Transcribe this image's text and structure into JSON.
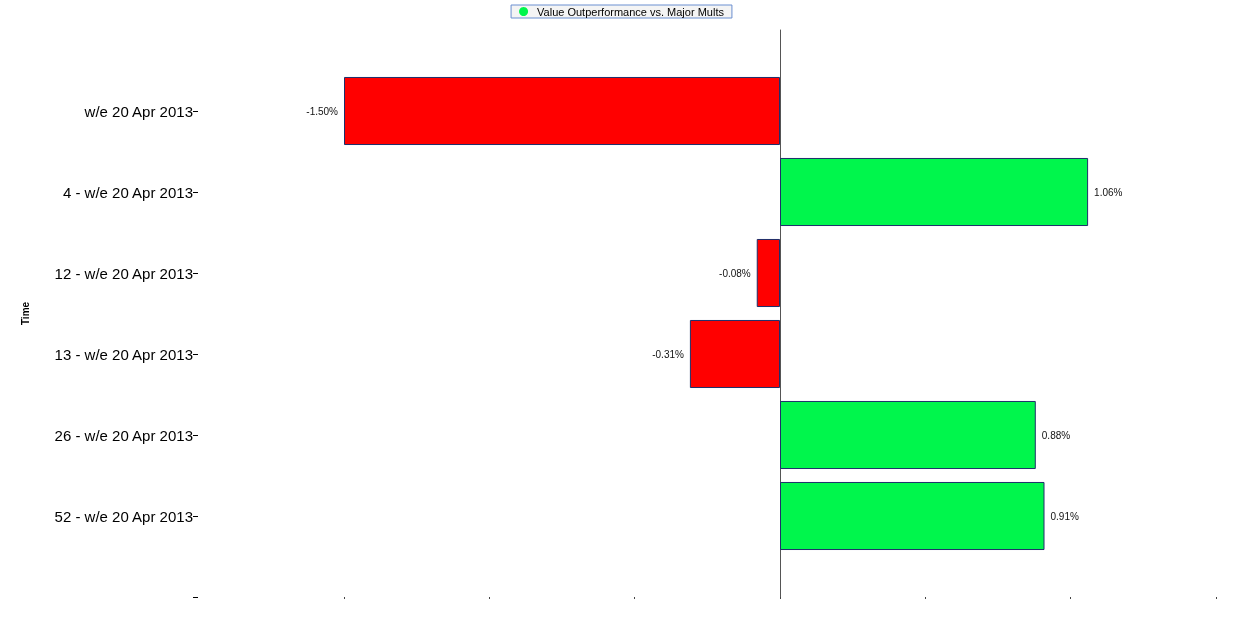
{
  "chart_data": {
    "type": "bar",
    "orientation": "horizontal",
    "ylabel": "Time",
    "legend": "top",
    "categories": [
      null,
      "w/e 20 Apr 2013",
      "4 - w/e 20 Apr 2013",
      "12 - w/e 20 Apr 2013",
      "13 - w/e 20 Apr 2013",
      "26 - w/e 20 Apr 2013",
      "52 - w/e 20 Apr 2013",
      null
    ],
    "series": [
      {
        "name": "Value Outperformance vs. Major Mults",
        "color": "#00f64c",
        "values": [
          null,
          -1.5,
          1.06,
          -0.08,
          -0.31,
          0.88,
          0.91,
          null
        ],
        "colors": [
          null,
          "#ff0000",
          "#00f64c",
          "#ff0000",
          "#ff0000",
          "#00f64c",
          "#00f64c",
          null
        ],
        "value_labels": [
          null,
          "-1.50%",
          "1.06%",
          "-0.08%",
          "-0.31%",
          "0.88%",
          "0.91%",
          null
        ]
      }
    ],
    "xticks": [
      {
        "value": -1.5,
        "label": null
      },
      {
        "value": -1,
        "label": null
      },
      {
        "value": -0.5,
        "label": null
      },
      {
        "value": 0,
        "label": null
      },
      {
        "value": 0.5,
        "label": null
      },
      {
        "value": 1,
        "label": null
      },
      {
        "value": 1.5,
        "label": null
      }
    ],
    "tick_labels": "y"
  }
}
